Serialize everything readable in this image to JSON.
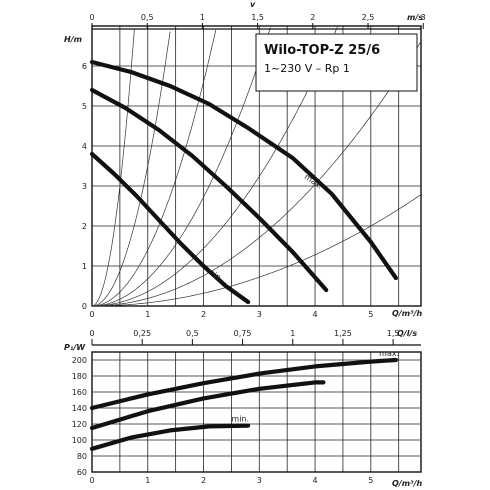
{
  "chart_data": [
    {
      "type": "line",
      "title": "Wilo-TOP-Z 25/6",
      "subtitle": "1~230 V – Rp 1",
      "ylabel": "H/m",
      "xlabel": "Q/m³/h",
      "x2label": "m/s",
      "x2label_top": "v",
      "xlim": [
        0,
        5.9
      ],
      "ylim": [
        0,
        7
      ],
      "xticks": [
        0,
        1,
        2,
        3,
        4,
        5
      ],
      "yticks": [
        0,
        1,
        2,
        3,
        4,
        5,
        6
      ],
      "x2ticks": [
        {
          "label": "0",
          "at": 0
        },
        {
          "label": "0,5",
          "at": 0.99
        },
        {
          "label": "1",
          "at": 1.98
        },
        {
          "label": "1,5",
          "at": 2.97
        },
        {
          "label": "2",
          "at": 3.96
        },
        {
          "label": "2,5",
          "at": 4.95
        },
        {
          "label": "3",
          "at": 5.94
        }
      ],
      "grid": true,
      "series": [
        {
          "name": "max.",
          "label_at": [
            3.8,
            3.2
          ],
          "x": [
            0,
            0.7,
            1.4,
            2.1,
            2.8,
            3.6,
            4.3,
            5.0,
            5.45
          ],
          "y": [
            6.1,
            5.85,
            5.5,
            5.05,
            4.45,
            3.7,
            2.8,
            1.6,
            0.7
          ]
        },
        {
          "name": "",
          "x": [
            0,
            0.6,
            1.2,
            1.8,
            2.4,
            3.0,
            3.6,
            4.2
          ],
          "y": [
            5.4,
            4.95,
            4.4,
            3.75,
            3.0,
            2.2,
            1.35,
            0.4
          ]
        },
        {
          "name": "min.",
          "label_at": [
            2.05,
            0.85
          ],
          "x": [
            0,
            0.4,
            0.8,
            1.2,
            1.6,
            2.0,
            2.4,
            2.8
          ],
          "y": [
            3.8,
            3.3,
            2.75,
            2.15,
            1.55,
            1.0,
            0.5,
            0.1
          ]
        }
      ],
      "system_curves": [
        {
          "k": 12.0
        },
        {
          "k": 3.5
        },
        {
          "k": 1.4
        },
        {
          "k": 0.68
        },
        {
          "k": 0.36
        },
        {
          "k": 0.19
        },
        {
          "k": 0.08
        }
      ]
    },
    {
      "type": "line",
      "ylabel": "P₁/W",
      "xlabel": "Q/m³/h",
      "x2label": "Q/l/s",
      "xlim": [
        0,
        5.9
      ],
      "ylim": [
        60,
        210
      ],
      "xticks": [
        0,
        1,
        2,
        3,
        4,
        5
      ],
      "yticks": [
        60,
        80,
        100,
        120,
        140,
        160,
        180,
        200
      ],
      "x2ticks": [
        {
          "label": "0",
          "at": 0
        },
        {
          "label": "0,25",
          "at": 0.9
        },
        {
          "label": "0,5",
          "at": 1.8
        },
        {
          "label": "0,75",
          "at": 2.7
        },
        {
          "label": "1",
          "at": 3.6
        },
        {
          "label": "1,25",
          "at": 4.5
        },
        {
          "label": "1,5",
          "at": 5.4
        }
      ],
      "grid": true,
      "series": [
        {
          "name": "max.",
          "label_at": [
            5.15,
            205
          ],
          "x": [
            0,
            1,
            2,
            3,
            4,
            5,
            5.45
          ],
          "y": [
            140,
            157,
            171,
            183,
            192,
            198,
            200
          ]
        },
        {
          "name": "",
          "x": [
            0,
            1,
            2,
            3,
            4,
            4.15
          ],
          "y": [
            115,
            136,
            152,
            164,
            172,
            172
          ]
        },
        {
          "name": "min.",
          "label_at": [
            2.5,
            123
          ],
          "x": [
            0,
            0.7,
            1.4,
            2.1,
            2.8
          ],
          "y": [
            89,
            103,
            112,
            117,
            118
          ]
        }
      ]
    }
  ]
}
